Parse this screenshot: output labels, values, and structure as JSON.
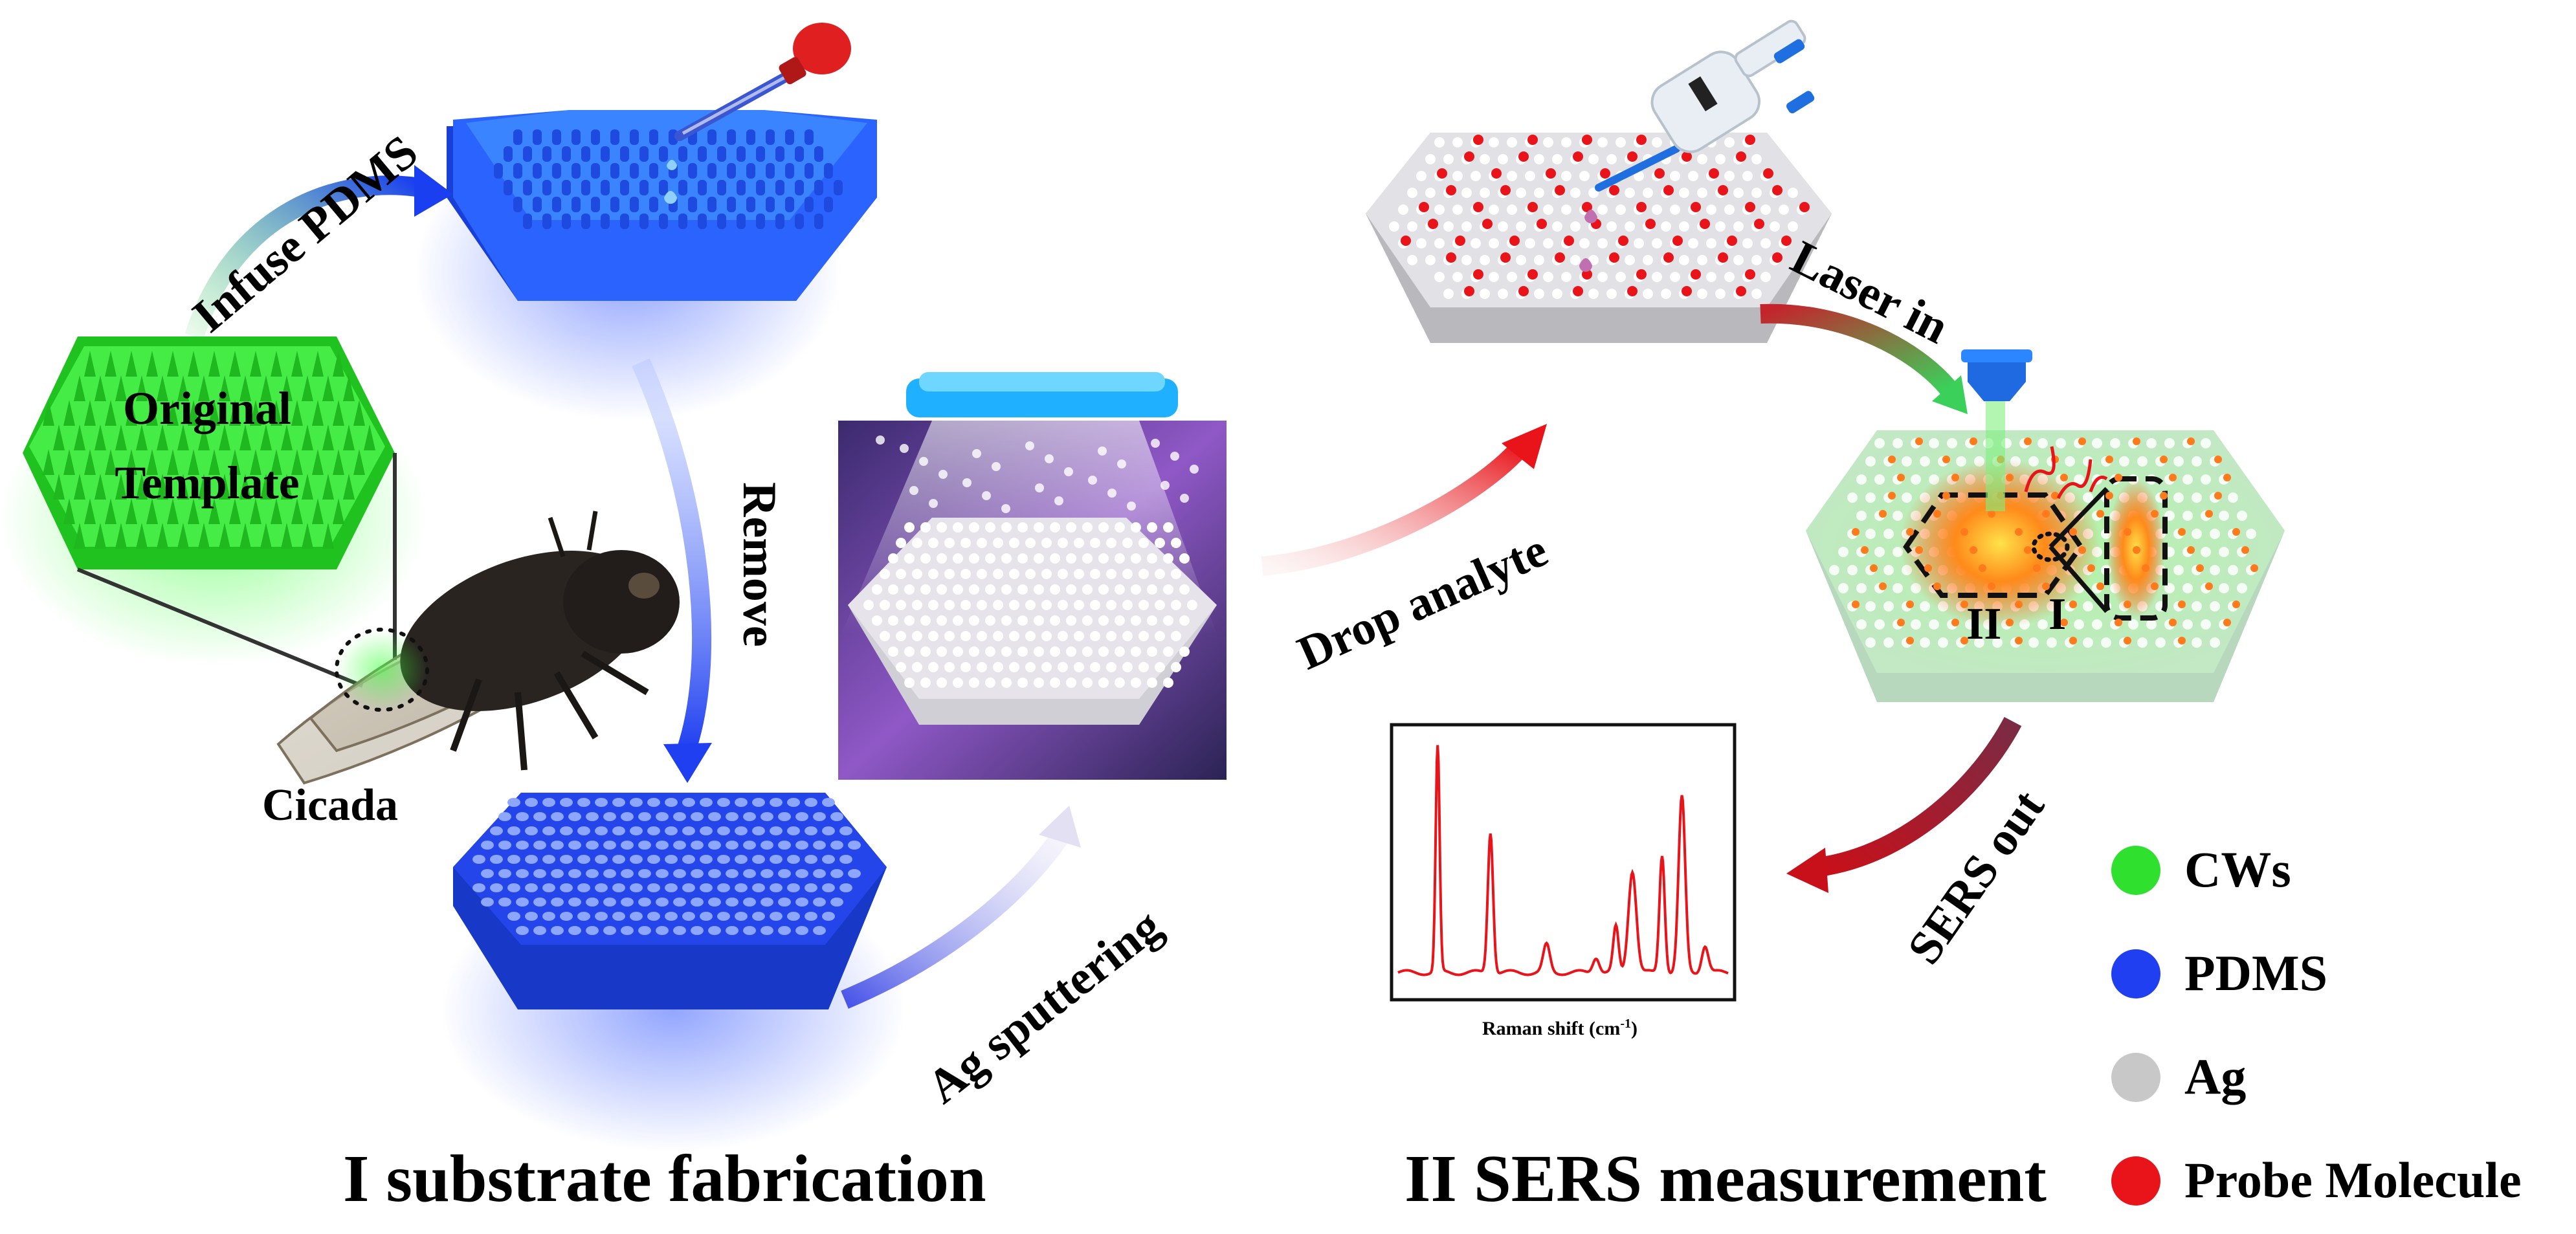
{
  "sections": {
    "fabrication": "I substrate fabrication",
    "measurement": "II SERS measurement"
  },
  "steps": {
    "infuse": "Infuse PDMS",
    "remove": "Remove",
    "sputter": "Ag sputtering",
    "drop": "Drop analyte",
    "laser": "Laser in",
    "sers_out": "SERS out"
  },
  "template_label": [
    "Original",
    "Template"
  ],
  "insect_label": "Cicada",
  "regions": {
    "one": "I",
    "two": "II"
  },
  "spectrum": {
    "xlabel_main": "Raman shift (cm",
    "xlabel_sup": "-1",
    "xlabel_end": ")"
  },
  "legend": [
    {
      "label": "CWs",
      "color": "#2fe02f"
    },
    {
      "label": "PDMS",
      "color": "#1f3ff0"
    },
    {
      "label": "Ag",
      "color": "#c8c8c8"
    },
    {
      "label": "Probe Molecule",
      "color": "#e8141a"
    }
  ],
  "colors": {
    "cw_green": "#2fe02f",
    "pdms_blue": "#1f3ff0",
    "ag_gray": "#d9d9d9",
    "probe_red": "#e8141a",
    "spectrum_red": "#e8141a"
  }
}
